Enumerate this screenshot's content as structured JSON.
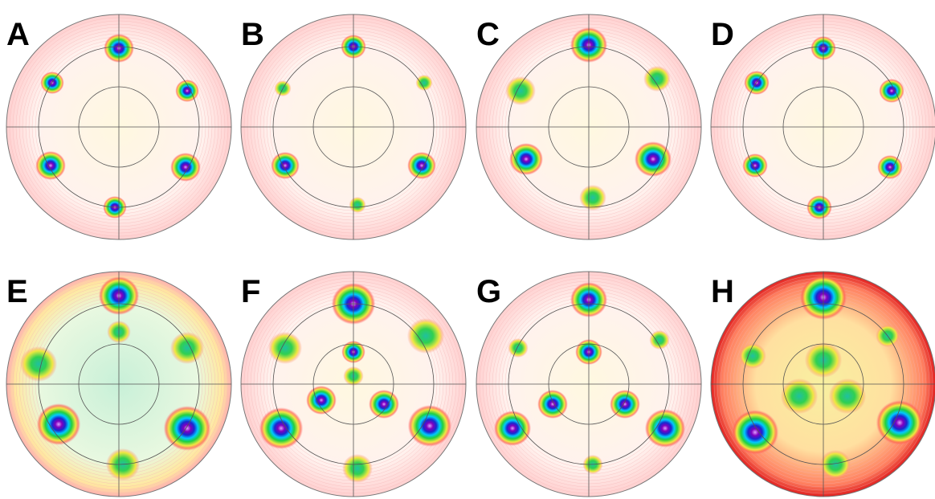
{
  "panels": [
    {
      "label": "A"
    },
    {
      "label": "B"
    },
    {
      "label": "C"
    },
    {
      "label": "D"
    },
    {
      "label": "E"
    },
    {
      "label": "F"
    },
    {
      "label": "G"
    },
    {
      "label": "H"
    }
  ]
}
